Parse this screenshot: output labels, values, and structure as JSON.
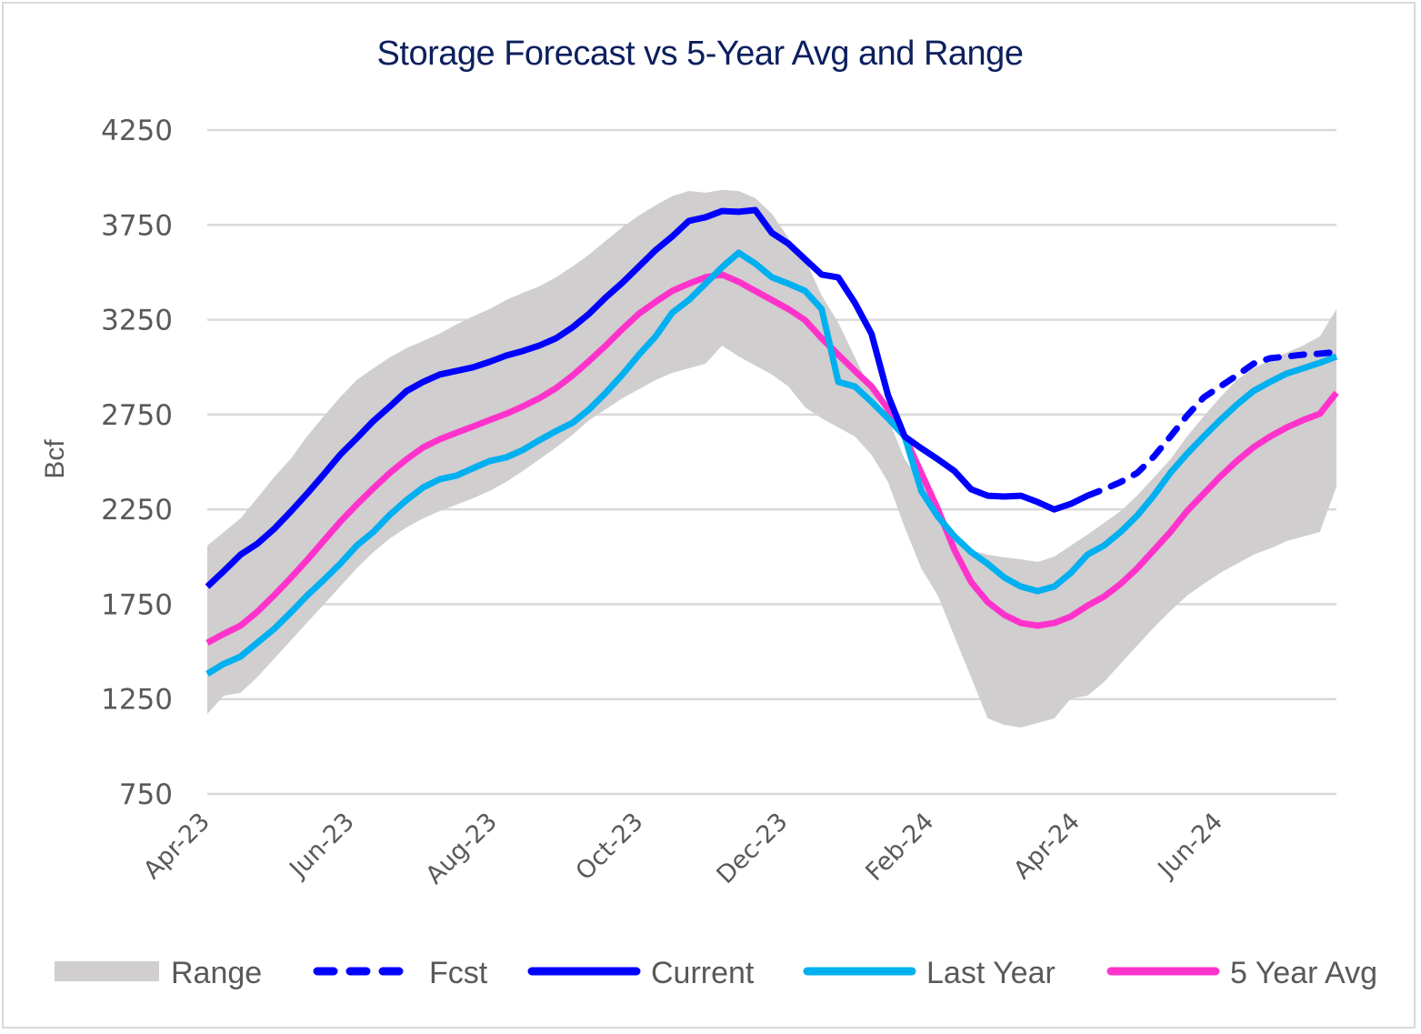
{
  "chart_data": {
    "type": "line",
    "title": "Storage Forecast vs 5-Year Avg and Range",
    "xlabel": "",
    "ylabel": "Bcf",
    "ylim": [
      750,
      4250
    ],
    "yticks": [
      750,
      1250,
      1750,
      2250,
      2750,
      3250,
      3750,
      4250
    ],
    "ytick_labels": [
      "750",
      "1250",
      "1750",
      "2250",
      "2750",
      "3250",
      "3750",
      "4250"
    ],
    "x_frequency": "weekly",
    "x_count": 69,
    "xtick_labels": [
      "Apr-23",
      "Jun-23",
      "Aug-23",
      "Oct-23",
      "Dec-23",
      "Feb-24",
      "Apr-24",
      "Jun-24"
    ],
    "xtick_week_index": [
      0,
      8.7,
      17.3,
      26.1,
      34.8,
      43.6,
      52.4,
      61
    ],
    "grid": "horizontal",
    "legend_position": "bottom",
    "legend": [
      {
        "key": "range",
        "label": "Range"
      },
      {
        "key": "fcst",
        "label": "Fcst"
      },
      {
        "key": "current",
        "label": "Current"
      },
      {
        "key": "last_year",
        "label": "Last Year"
      },
      {
        "key": "avg5",
        "label": "5 Year Avg"
      }
    ],
    "colors": {
      "range": "#d0cecf",
      "fcst": "#0000ff",
      "current": "#0000ff",
      "last_year": "#00b0f0",
      "avg5": "#ff33cc",
      "grid": "#d9d9d9",
      "title": "#0c1f5e",
      "text": "#595959"
    },
    "series": [
      {
        "key": "range",
        "name": "Range",
        "style": "band",
        "start_index": 0,
        "upper": [
          2059,
          2131,
          2203,
          2308,
          2418,
          2514,
          2634,
          2740,
          2841,
          2932,
          2994,
          3052,
          3100,
          3138,
          3177,
          3225,
          3268,
          3306,
          3354,
          3392,
          3426,
          3474,
          3531,
          3594,
          3666,
          3738,
          3800,
          3853,
          3901,
          3929,
          3920,
          3934,
          3929,
          3891,
          3809,
          3680,
          3569,
          3378,
          3234,
          3052,
          2874,
          2730,
          2514,
          2394,
          2250,
          2107,
          2035,
          2011,
          1997,
          1987,
          1973,
          2001,
          2059,
          2117,
          2179,
          2241,
          2323,
          2418,
          2514,
          2634,
          2740,
          2841,
          2932,
          2994,
          3037,
          3076,
          3114,
          3162,
          3306
        ],
        "lower": [
          1172,
          1268,
          1283,
          1364,
          1460,
          1556,
          1652,
          1747,
          1843,
          1939,
          2025,
          2097,
          2155,
          2203,
          2241,
          2275,
          2308,
          2347,
          2395,
          2452,
          2514,
          2577,
          2644,
          2721,
          2778,
          2836,
          2884,
          2932,
          2970,
          2994,
          3018,
          3114,
          3057,
          3009,
          2961,
          2898,
          2788,
          2730,
          2682,
          2634,
          2538,
          2394,
          2155,
          1939,
          1795,
          1579,
          1364,
          1148,
          1114,
          1100,
          1124,
          1148,
          1253,
          1268,
          1340,
          1436,
          1532,
          1627,
          1714,
          1795,
          1857,
          1915,
          1963,
          2011,
          2044,
          2083,
          2107,
          2131,
          2370
        ]
      },
      {
        "key": "avg5",
        "name": "5 Year Avg",
        "style": "solid",
        "start_index": 0,
        "values": [
          1546,
          1594,
          1637,
          1709,
          1795,
          1886,
          1982,
          2083,
          2184,
          2275,
          2361,
          2443,
          2514,
          2577,
          2620,
          2654,
          2687,
          2721,
          2754,
          2793,
          2836,
          2889,
          2956,
          3033,
          3114,
          3201,
          3282,
          3344,
          3402,
          3440,
          3474,
          3488,
          3450,
          3402,
          3354,
          3306,
          3248,
          3152,
          3066,
          2980,
          2898,
          2778,
          2634,
          2442,
          2250,
          2035,
          1867,
          1761,
          1694,
          1651,
          1637,
          1651,
          1685,
          1742,
          1790,
          1857,
          1939,
          2035,
          2131,
          2241,
          2332,
          2423,
          2505,
          2577,
          2634,
          2682,
          2721,
          2754,
          2865
        ]
      },
      {
        "key": "last_year",
        "name": "Last Year",
        "style": "solid",
        "start_index": 0,
        "values": [
          1383,
          1436,
          1474,
          1546,
          1618,
          1704,
          1795,
          1877,
          1963,
          2059,
          2131,
          2222,
          2299,
          2366,
          2409,
          2428,
          2467,
          2505,
          2524,
          2563,
          2615,
          2663,
          2706,
          2778,
          2865,
          2961,
          3066,
          3162,
          3287,
          3354,
          3440,
          3527,
          3603,
          3546,
          3474,
          3440,
          3402,
          3306,
          2922,
          2898,
          2817,
          2730,
          2634,
          2347,
          2212,
          2107,
          2025,
          1963,
          1891,
          1843,
          1819,
          1843,
          1915,
          2011,
          2059,
          2131,
          2217,
          2323,
          2443,
          2543,
          2634,
          2721,
          2802,
          2874,
          2922,
          2966,
          2994,
          3023,
          3056
        ]
      },
      {
        "key": "current",
        "name": "Current",
        "style": "solid",
        "start_index": 0,
        "values": [
          1843,
          1925,
          2011,
          2068,
          2145,
          2236,
          2332,
          2433,
          2538,
          2625,
          2716,
          2793,
          2874,
          2922,
          2961,
          2980,
          2999,
          3028,
          3061,
          3085,
          3114,
          3152,
          3210,
          3282,
          3368,
          3445,
          3531,
          3617,
          3689,
          3771,
          3790,
          3823,
          3819,
          3828,
          3708,
          3651,
          3569,
          3488,
          3473,
          3339,
          3176,
          2850,
          2634,
          2572,
          2514,
          2452,
          2356,
          2322,
          2318,
          2322,
          2289,
          2250,
          2279,
          2322
        ]
      },
      {
        "key": "fcst",
        "name": "Fcst",
        "style": "dashed",
        "start_index": 53,
        "values": [
          2322,
          2356,
          2394,
          2442,
          2528,
          2634,
          2744,
          2840,
          2898,
          2956,
          3018,
          3047,
          3056,
          3066,
          3071,
          3080
        ]
      }
    ]
  }
}
